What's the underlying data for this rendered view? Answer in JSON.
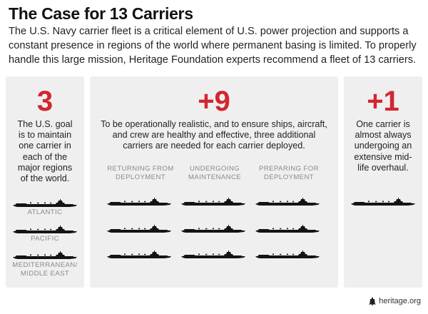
{
  "title": "The Case for 13 Carriers",
  "intro": "The U.S. Navy carrier fleet is a critical element of U.S. power projection and supports a constant presence in regions of the world where permanent basing is limited. To properly handle this large mission, Heritage Foundation experts recommend a fleet of 13 carriers.",
  "accent_color": "#d22630",
  "panel_left": {
    "number": "3",
    "description": "The U.S. goal is to maintain one carrier in each of the major regions of the world.",
    "regions": [
      "ATLANTIC",
      "PACIFIC",
      "MEDITERRANEAN/ MIDDLE EAST"
    ]
  },
  "panel_middle": {
    "number": "+9",
    "description": "To be operationally realistic, and to ensure ships, aircraft, and crew are healthy and effective, three additional carriers are needed for each carrier deployed.",
    "columns": [
      "RETURNING FROM DEPLOYMENT",
      "UNDERGOING MAINTENANCE",
      "PREPARING FOR DEPLOYMENT"
    ]
  },
  "panel_right": {
    "number": "+1",
    "description": "One carrier is almost always undergoing an extensive mid-life overhaul."
  },
  "footer": {
    "icon": "liberty-bell-icon",
    "text": "heritage.org"
  }
}
